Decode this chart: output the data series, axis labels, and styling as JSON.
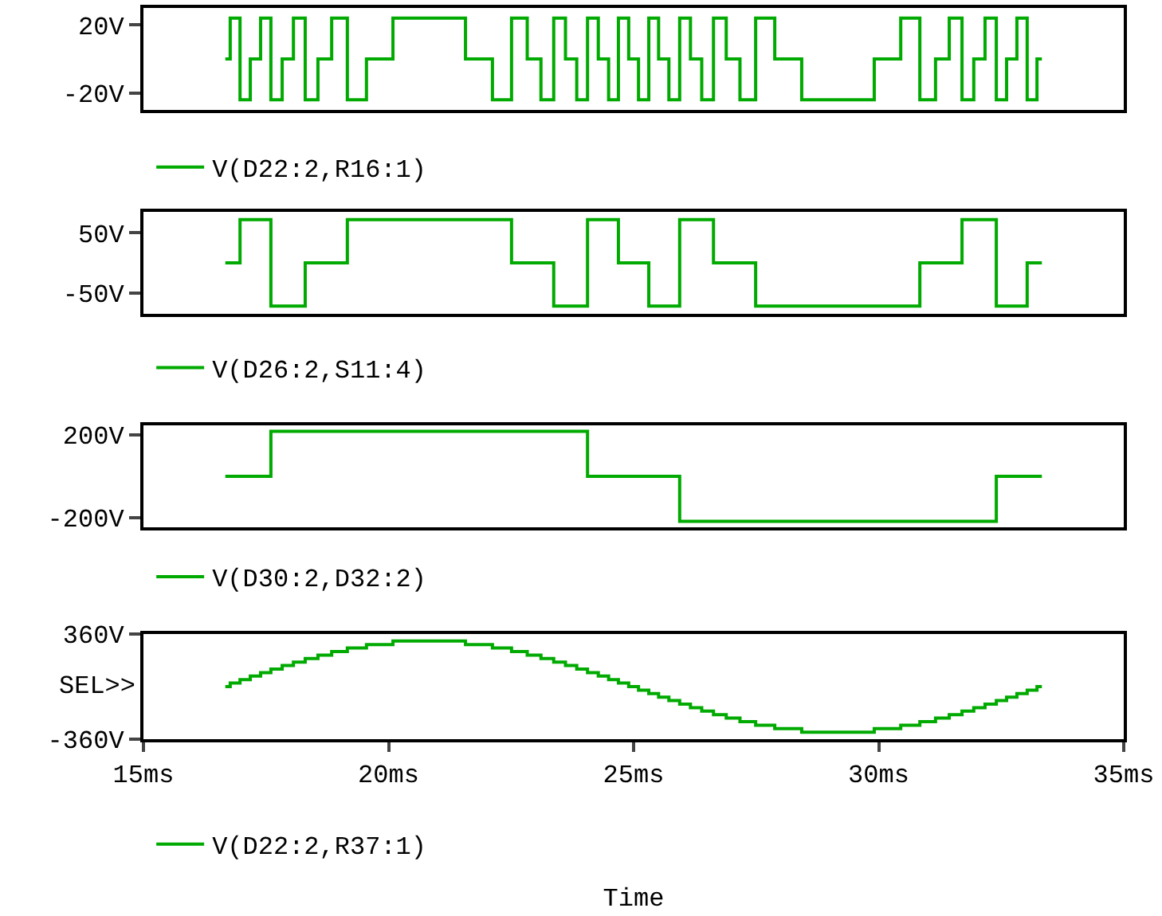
{
  "chart_data": [
    {
      "type": "step",
      "tick_labels": "y",
      "grid": false,
      "legend": "bottom left",
      "xlim": [
        15,
        35
      ],
      "ylim": [
        -30,
        30
      ],
      "yticks": [
        {
          "value": 20,
          "label": "20V"
        },
        {
          "value": -20,
          "label": "-20V"
        }
      ],
      "x": [
        16.67,
        16.77,
        16.97,
        17.18,
        17.39,
        17.6,
        17.83,
        18.06,
        18.3,
        18.56,
        18.84,
        19.16,
        19.55,
        20.09,
        21.57,
        22.12,
        22.51,
        22.83,
        23.11,
        23.37,
        23.61,
        23.84,
        24.06,
        24.28,
        24.49,
        24.69,
        24.9,
        25.1,
        25.31,
        25.51,
        25.72,
        25.94,
        26.16,
        26.39,
        26.63,
        26.89,
        27.17,
        27.49,
        27.88,
        28.43,
        29.91,
        30.45,
        30.84,
        31.16,
        31.44,
        31.7,
        31.94,
        32.17,
        32.4,
        32.61,
        32.82,
        33.03,
        33.23,
        33.33
      ],
      "series": [
        {
          "name": "V(D22:2,R16:1)",
          "color": "#00aa00",
          "values": [
            0,
            24,
            -24,
            0,
            24,
            -24,
            0,
            24,
            -24,
            0,
            24,
            -24,
            0,
            24,
            0,
            -24,
            24,
            0,
            -24,
            24,
            0,
            -24,
            24,
            0,
            -24,
            24,
            0,
            -24,
            24,
            0,
            -24,
            24,
            0,
            -24,
            24,
            0,
            -24,
            24,
            0,
            -24,
            0,
            24,
            -24,
            0,
            24,
            -24,
            0,
            24,
            -24,
            0,
            24,
            -24,
            0,
            0
          ]
        }
      ]
    },
    {
      "type": "step",
      "tick_labels": "y",
      "grid": false,
      "legend": "bottom left",
      "xlim": [
        15,
        35
      ],
      "ylim": [
        -85,
        85
      ],
      "yticks": [
        {
          "value": 50,
          "label": "50V"
        },
        {
          "value": -50,
          "label": "-50V"
        }
      ],
      "x": [
        16.67,
        16.77,
        16.97,
        17.18,
        17.39,
        17.6,
        17.83,
        18.06,
        18.3,
        18.56,
        18.84,
        19.16,
        19.55,
        20.09,
        21.57,
        22.12,
        22.51,
        22.83,
        23.11,
        23.37,
        23.61,
        23.84,
        24.06,
        24.28,
        24.49,
        24.69,
        24.9,
        25.1,
        25.31,
        25.51,
        25.72,
        25.94,
        26.16,
        26.39,
        26.63,
        26.89,
        27.17,
        27.49,
        27.88,
        28.43,
        29.91,
        30.45,
        30.84,
        31.16,
        31.44,
        31.7,
        31.94,
        32.17,
        32.4,
        32.61,
        32.82,
        33.03,
        33.23,
        33.33
      ],
      "series": [
        {
          "name": "V(D26:2,S11:4)",
          "color": "#00aa00",
          "values": [
            0,
            0,
            72,
            72,
            72,
            -72,
            -72,
            -72,
            0,
            0,
            0,
            72,
            72,
            72,
            72,
            72,
            0,
            0,
            0,
            -72,
            -72,
            -72,
            72,
            72,
            72,
            0,
            0,
            0,
            -72,
            -72,
            -72,
            72,
            72,
            72,
            0,
            0,
            0,
            -72,
            -72,
            -72,
            -72,
            -72,
            0,
            0,
            0,
            72,
            72,
            72,
            -72,
            -72,
            -72,
            0,
            0,
            0
          ]
        }
      ]
    },
    {
      "type": "step",
      "tick_labels": "y",
      "grid": false,
      "legend": "bottom left",
      "xlim": [
        15,
        35
      ],
      "ylim": [
        -245,
        245
      ],
      "yticks": [
        {
          "value": 200,
          "label": "200V"
        },
        {
          "value": -200,
          "label": "-200V"
        }
      ],
      "x": [
        16.67,
        16.77,
        16.97,
        17.18,
        17.39,
        17.6,
        17.83,
        18.06,
        18.3,
        18.56,
        18.84,
        19.16,
        19.55,
        20.09,
        21.57,
        22.12,
        22.51,
        22.83,
        23.11,
        23.37,
        23.61,
        23.84,
        24.06,
        24.28,
        24.49,
        24.69,
        24.9,
        25.1,
        25.31,
        25.51,
        25.72,
        25.94,
        26.16,
        26.39,
        26.63,
        26.89,
        27.17,
        27.49,
        27.88,
        28.43,
        29.91,
        30.45,
        30.84,
        31.16,
        31.44,
        31.7,
        31.94,
        32.17,
        32.4,
        32.61,
        32.82,
        33.03,
        33.23,
        33.33
      ],
      "series": [
        {
          "name": "V(D30:2,D32:2)",
          "color": "#00aa00",
          "values": [
            0,
            0,
            0,
            0,
            0,
            216,
            216,
            216,
            216,
            216,
            216,
            216,
            216,
            216,
            216,
            216,
            216,
            216,
            216,
            216,
            216,
            216,
            0,
            0,
            0,
            0,
            0,
            0,
            0,
            0,
            0,
            -216,
            -216,
            -216,
            -216,
            -216,
            -216,
            -216,
            -216,
            -216,
            -216,
            -216,
            -216,
            -216,
            -216,
            -216,
            -216,
            -216,
            0,
            0,
            0,
            0,
            0,
            0
          ]
        }
      ]
    },
    {
      "type": "step",
      "grid": false,
      "legend": "bottom left",
      "xlabel": "Time",
      "annotations": [
        "SEL>>"
      ],
      "xlim": [
        15,
        35
      ],
      "xticks": [
        {
          "value": 15,
          "label": "15ms"
        },
        {
          "value": 20,
          "label": "20ms"
        },
        {
          "value": 25,
          "label": "25ms"
        },
        {
          "value": 30,
          "label": "30ms"
        },
        {
          "value": 35,
          "label": "35ms"
        }
      ],
      "ylim": [
        -360,
        360
      ],
      "yticks": [
        {
          "value": 360,
          "label": "360V"
        },
        {
          "value": -360,
          "label": "-360V"
        }
      ],
      "x": [
        16.67,
        16.77,
        16.97,
        17.18,
        17.39,
        17.6,
        17.83,
        18.06,
        18.3,
        18.56,
        18.84,
        19.16,
        19.55,
        20.09,
        21.57,
        22.12,
        22.51,
        22.83,
        23.11,
        23.37,
        23.61,
        23.84,
        24.06,
        24.28,
        24.49,
        24.69,
        24.9,
        25.1,
        25.31,
        25.51,
        25.72,
        25.94,
        26.16,
        26.39,
        26.63,
        26.89,
        27.17,
        27.49,
        27.88,
        28.43,
        29.91,
        30.45,
        30.84,
        31.16,
        31.44,
        31.7,
        31.94,
        32.17,
        32.4,
        32.61,
        32.82,
        33.03,
        33.23,
        33.33
      ],
      "series": [
        {
          "name": "V(D22:2,R37:1)",
          "color": "#00aa00",
          "values": [
            0,
            24,
            48,
            72,
            96,
            120,
            144,
            168,
            192,
            216,
            240,
            264,
            288,
            312,
            288,
            264,
            240,
            216,
            192,
            168,
            144,
            120,
            96,
            72,
            48,
            24,
            0,
            -24,
            -48,
            -72,
            -96,
            -120,
            -144,
            -168,
            -192,
            -216,
            -240,
            -264,
            -288,
            -312,
            -288,
            -264,
            -240,
            -216,
            -192,
            -168,
            -144,
            -120,
            -96,
            -72,
            -48,
            -24,
            0,
            0
          ]
        }
      ]
    }
  ]
}
